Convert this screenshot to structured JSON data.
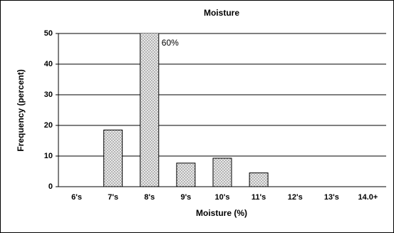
{
  "chart_data": {
    "type": "bar",
    "title": "Moisture",
    "x_label": "Moisture (%)",
    "y_label": "Frequency (percent)",
    "categories": [
      "6's",
      "7's",
      "8's",
      "9's",
      "10's",
      "11's",
      "12's",
      "13's",
      "14.0+"
    ],
    "values": [
      0,
      18.5,
      60,
      7.7,
      9.3,
      4.5,
      0,
      0,
      0
    ],
    "value_labels": [
      null,
      null,
      "60%",
      null,
      null,
      null,
      null,
      null,
      null
    ],
    "color": "#c8c8c8",
    "ylim": [
      0,
      50
    ],
    "yticks": [
      0,
      10,
      20,
      30,
      40,
      50
    ],
    "grid": true
  }
}
